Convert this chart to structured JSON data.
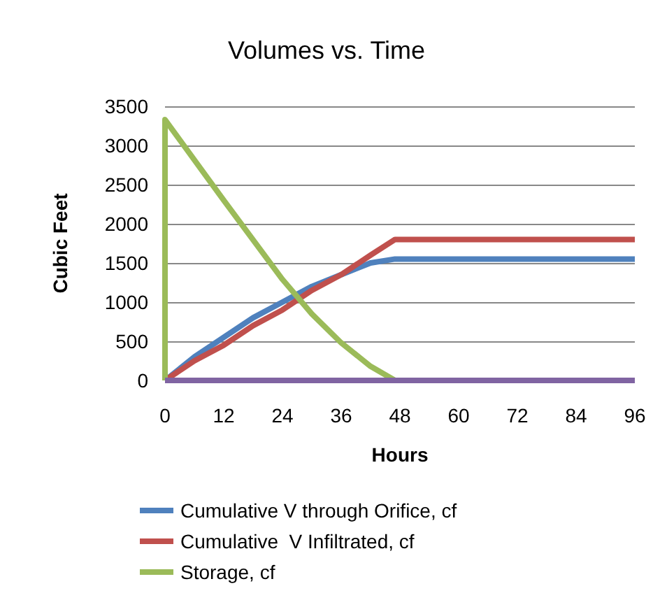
{
  "chart_data": {
    "type": "line",
    "title": "Volumes vs. Time",
    "xlabel": "Hours",
    "ylabel": "Cubic Feet",
    "xlim": [
      0,
      96
    ],
    "xticks": [
      0,
      12,
      24,
      36,
      48,
      60,
      72,
      84,
      96
    ],
    "ylim": [
      0,
      3500
    ],
    "yticks": [
      0,
      500,
      1000,
      1500,
      2000,
      2500,
      3000,
      3500
    ],
    "grid": "y",
    "legend": "bottom",
    "marker": "none",
    "line_style": "solid",
    "series": [
      {
        "name": "Cumulative V through Orifice, cf",
        "color": "#4f81bd",
        "x": [
          0,
          6,
          12,
          18,
          24,
          30,
          36,
          42,
          47,
          96
        ],
        "values": [
          0,
          300,
          550,
          800,
          1000,
          1200,
          1350,
          1500,
          1550,
          1550
        ]
      },
      {
        "name": "Cumulative  V Infiltrated, cf",
        "color": "#c0504d",
        "x": [
          0,
          6,
          12,
          18,
          24,
          30,
          36,
          42,
          47,
          96
        ],
        "values": [
          0,
          250,
          450,
          700,
          900,
          1150,
          1350,
          1600,
          1800,
          1800
        ]
      },
      {
        "name": "Storage, cf",
        "color": "#9bbb59",
        "x": [
          0,
          0,
          12,
          24,
          30,
          36,
          42,
          47,
          96
        ],
        "values": [
          0,
          3330,
          2300,
          1290,
          850,
          480,
          180,
          0,
          0
        ]
      },
      {
        "color": "#8064a2",
        "x": [
          0,
          96
        ],
        "values": [
          0,
          0
        ]
      }
    ]
  }
}
